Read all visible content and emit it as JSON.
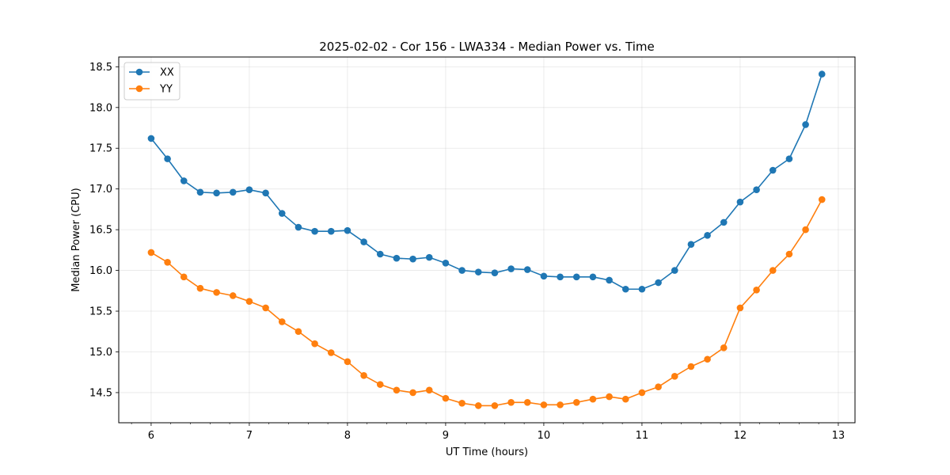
{
  "chart_data": {
    "type": "line",
    "title": "2025-02-02 - Cor 156 - LWA334 - Median Power vs. Time",
    "xlabel": "UT Time (hours)",
    "ylabel": "Median Power (CPU)",
    "xlim": [
      5.67,
      13.17
    ],
    "ylim": [
      14.13,
      18.62
    ],
    "xticks": [
      6,
      7,
      8,
      9,
      10,
      11,
      12,
      13
    ],
    "yticks": [
      14.5,
      15.0,
      15.5,
      16.0,
      16.5,
      17.0,
      17.5,
      18.0,
      18.5
    ],
    "xtick_labels": [
      "6",
      "7",
      "8",
      "9",
      "10",
      "11",
      "12",
      "13"
    ],
    "ytick_labels": [
      "14.5",
      "15.0",
      "15.5",
      "16.0",
      "16.5",
      "17.0",
      "17.5",
      "18.0",
      "18.5"
    ],
    "grid": true,
    "legend_position": "top-left",
    "x": [
      6.0,
      6.1667,
      6.3333,
      6.5,
      6.6667,
      6.8333,
      7.0,
      7.1667,
      7.3333,
      7.5,
      7.6667,
      7.8333,
      8.0,
      8.1667,
      8.3333,
      8.5,
      8.6667,
      8.8333,
      9.0,
      9.1667,
      9.3333,
      9.5,
      9.6667,
      9.8333,
      10.0,
      10.1667,
      10.3333,
      10.5,
      10.6667,
      10.8333,
      11.0,
      11.1667,
      11.3333,
      11.5,
      11.6667,
      11.8333,
      12.0,
      12.1667,
      12.3333,
      12.5,
      12.6667,
      12.8333
    ],
    "series": [
      {
        "name": "XX",
        "color": "#1f77b4",
        "values": [
          17.62,
          17.37,
          17.1,
          16.96,
          16.95,
          16.96,
          16.99,
          16.95,
          16.7,
          16.53,
          16.48,
          16.48,
          16.49,
          16.35,
          16.2,
          16.15,
          16.14,
          16.16,
          16.09,
          16.0,
          15.98,
          15.97,
          16.02,
          16.01,
          15.93,
          15.92,
          15.92,
          15.92,
          15.88,
          15.77,
          15.77,
          15.85,
          16.0,
          16.32,
          16.43,
          16.59,
          16.84,
          16.99,
          17.23,
          17.37,
          17.79,
          18.41
        ]
      },
      {
        "name": "YY",
        "color": "#ff7f0e",
        "values": [
          16.22,
          16.1,
          15.92,
          15.78,
          15.73,
          15.69,
          15.62,
          15.54,
          15.37,
          15.25,
          15.1,
          14.99,
          14.88,
          14.71,
          14.6,
          14.53,
          14.5,
          14.53,
          14.43,
          14.37,
          14.34,
          14.34,
          14.38,
          14.38,
          14.35,
          14.35,
          14.38,
          14.42,
          14.45,
          14.42,
          14.5,
          14.57,
          14.7,
          14.82,
          14.91,
          15.05,
          15.54,
          15.76,
          16.0,
          16.2,
          16.5,
          16.87
        ]
      }
    ]
  }
}
